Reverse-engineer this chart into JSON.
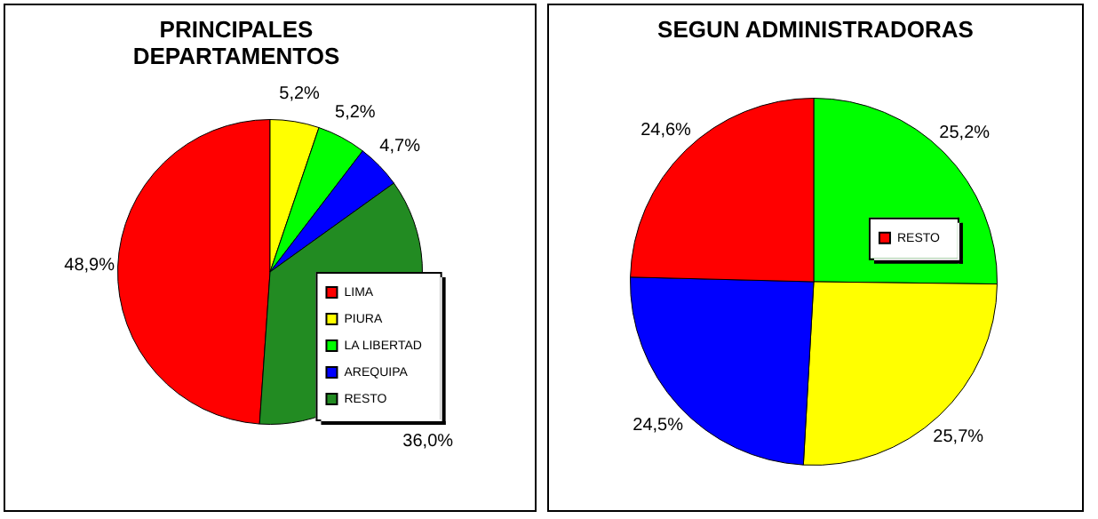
{
  "chart_data": [
    {
      "type": "pie",
      "title": "PRINCIPALES DEPARTAMENTOS",
      "categories": [
        "LIMA",
        "PIURA",
        "LA LIBERTAD",
        "AREQUIPA",
        "RESTO"
      ],
      "values": [
        48.9,
        5.2,
        5.2,
        4.7,
        36.0
      ],
      "colors": [
        "#ff0000",
        "#ffff00",
        "#00ff00",
        "#0000ff",
        "#228b22"
      ],
      "value_labels": [
        "48,9%",
        "5,2%",
        "5,2%",
        "4,7%",
        "36,0%"
      ],
      "legend": "bottom right"
    },
    {
      "type": "pie",
      "title": "SEGUN ADMINISTRADORAS",
      "categories": [
        null,
        null,
        null,
        "RESTO"
      ],
      "values": [
        25.2,
        25.7,
        24.5,
        24.6
      ],
      "colors": [
        "#00ff00",
        "#ffff00",
        "#0000ff",
        "#ff0000"
      ],
      "value_labels": [
        "25,2%",
        "25,7%",
        "24,5%",
        "24,6%"
      ],
      "legend": "right"
    }
  ]
}
